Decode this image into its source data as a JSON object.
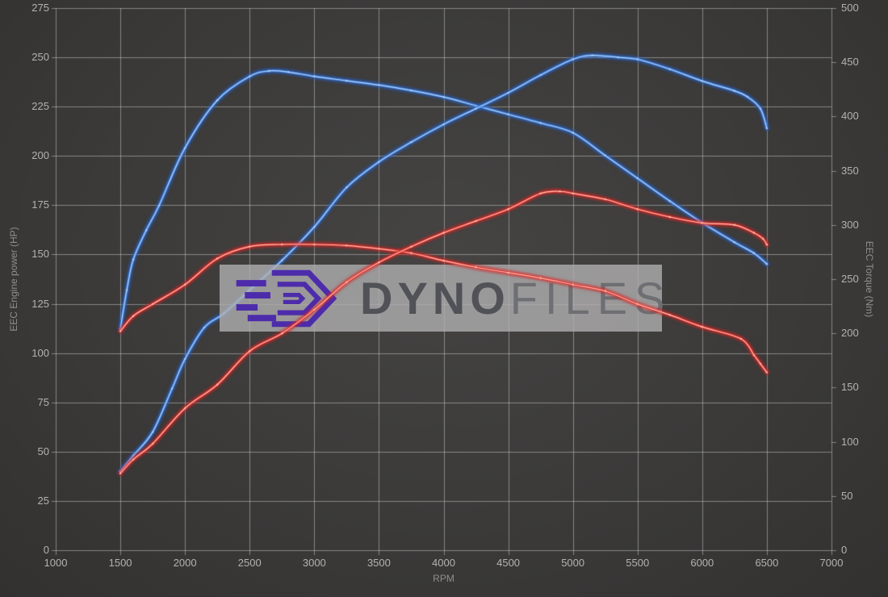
{
  "chart_data": {
    "type": "line",
    "grid": true,
    "legend": "none",
    "x_axis": {
      "label": "RPM",
      "min": 1000,
      "max": 7000,
      "tick_step": 500,
      "ticks": [
        1000,
        1500,
        2000,
        2500,
        3000,
        3500,
        4000,
        4500,
        5000,
        5500,
        6000,
        6500,
        7000
      ]
    },
    "y_axis_left": {
      "label": "EEC Engine power (HP)",
      "min": 0,
      "max": 275,
      "tick_step": 25,
      "ticks": [
        0,
        25,
        50,
        75,
        100,
        125,
        150,
        175,
        200,
        225,
        250,
        275
      ]
    },
    "y_axis_right": {
      "label": "EEC Torque (Nm)",
      "min": 0,
      "max": 500,
      "tick_step": 50,
      "ticks": [
        0,
        50,
        100,
        150,
        200,
        250,
        300,
        350,
        400,
        450,
        500
      ]
    },
    "series": [
      {
        "name": "blue-torque-curve",
        "axis": "right",
        "unit": "Nm",
        "layer": 1,
        "color": {
          "glow": "rgba(34,100,220,0.30)",
          "main": "#3c7bd9",
          "core": "#b3d3f5"
        },
        "points": [
          [
            1500,
            204
          ],
          [
            1550,
            240
          ],
          [
            1600,
            268
          ],
          [
            1700,
            295
          ],
          [
            1800,
            318
          ],
          [
            2000,
            371
          ],
          [
            2250,
            415
          ],
          [
            2500,
            437
          ],
          [
            2650,
            442
          ],
          [
            2800,
            441
          ],
          [
            3000,
            437
          ],
          [
            3250,
            433
          ],
          [
            3500,
            429
          ],
          [
            3750,
            424
          ],
          [
            4000,
            418
          ],
          [
            4250,
            410
          ],
          [
            4500,
            402
          ],
          [
            4750,
            394
          ],
          [
            5000,
            385
          ],
          [
            5250,
            364
          ],
          [
            5500,
            343
          ],
          [
            5750,
            322
          ],
          [
            6000,
            302
          ],
          [
            6250,
            284
          ],
          [
            6400,
            274
          ],
          [
            6500,
            264
          ]
        ]
      },
      {
        "name": "blue-power-curve",
        "axis": "left",
        "unit": "HP",
        "layer": 1,
        "color": {
          "glow": "rgba(34,100,220,0.30)",
          "main": "#3c7bd9",
          "core": "#b3d3f5"
        },
        "points": [
          [
            1500,
            40
          ],
          [
            1600,
            48
          ],
          [
            1750,
            60
          ],
          [
            1900,
            82
          ],
          [
            2000,
            97
          ],
          [
            2150,
            113
          ],
          [
            2300,
            120
          ],
          [
            2500,
            132
          ],
          [
            2750,
            147
          ],
          [
            3000,
            164
          ],
          [
            3250,
            184
          ],
          [
            3500,
            197
          ],
          [
            3750,
            207
          ],
          [
            4000,
            216
          ],
          [
            4250,
            224
          ],
          [
            4500,
            232
          ],
          [
            4750,
            241
          ],
          [
            5000,
            249
          ],
          [
            5150,
            251
          ],
          [
            5350,
            250
          ],
          [
            5500,
            249
          ],
          [
            5750,
            244
          ],
          [
            6000,
            238
          ],
          [
            6250,
            233
          ],
          [
            6350,
            230
          ],
          [
            6450,
            224
          ],
          [
            6500,
            214
          ]
        ]
      },
      {
        "name": "red-torque-curve",
        "axis": "right",
        "unit": "Nm",
        "layer": 2,
        "color": {
          "glow": "rgba(215,35,35,0.32)",
          "main": "#d92f2b",
          "core": "#ffc3b6"
        },
        "points": [
          [
            1500,
            202
          ],
          [
            1600,
            216
          ],
          [
            1750,
            227
          ],
          [
            2000,
            245
          ],
          [
            2250,
            269
          ],
          [
            2500,
            280
          ],
          [
            2750,
            282
          ],
          [
            3000,
            282
          ],
          [
            3250,
            281
          ],
          [
            3500,
            278
          ],
          [
            3750,
            274
          ],
          [
            4000,
            267
          ],
          [
            4250,
            261
          ],
          [
            4500,
            256
          ],
          [
            4750,
            251
          ],
          [
            5000,
            245
          ],
          [
            5250,
            239
          ],
          [
            5500,
            227
          ],
          [
            5750,
            217
          ],
          [
            6000,
            206
          ],
          [
            6300,
            195
          ],
          [
            6400,
            180
          ],
          [
            6450,
            172
          ],
          [
            6500,
            164
          ]
        ]
      },
      {
        "name": "red-power-curve",
        "axis": "left",
        "unit": "HP",
        "layer": 2,
        "color": {
          "glow": "rgba(215,35,35,0.32)",
          "main": "#d92f2b",
          "core": "#ffc3b6"
        },
        "points": [
          [
            1500,
            39
          ],
          [
            1600,
            46
          ],
          [
            1750,
            54
          ],
          [
            2000,
            72
          ],
          [
            2250,
            84
          ],
          [
            2500,
            101
          ],
          [
            2750,
            110
          ],
          [
            3000,
            122
          ],
          [
            3250,
            136
          ],
          [
            3500,
            146
          ],
          [
            3750,
            154
          ],
          [
            4000,
            161
          ],
          [
            4250,
            167
          ],
          [
            4500,
            173
          ],
          [
            4750,
            181
          ],
          [
            4900,
            182
          ],
          [
            5000,
            181
          ],
          [
            5250,
            178
          ],
          [
            5500,
            173
          ],
          [
            5750,
            169
          ],
          [
            6000,
            166
          ],
          [
            6250,
            165
          ],
          [
            6400,
            161
          ],
          [
            6470,
            158
          ],
          [
            6500,
            155
          ]
        ]
      }
    ],
    "watermark": {
      "brand_bold": "Dyno",
      "brand_light": "Files",
      "panel_color": "rgba(176,175,176,0.80)",
      "logo_color": "#4d2cab",
      "text_bold_color": "#515257",
      "text_light_color": "#6e6f73"
    }
  },
  "colors": {
    "background": "#3d3c3b",
    "grid": "rgba(210,210,210,0.50)",
    "tick_text": "#b4b2b0",
    "axis_title_text": "#918f8d"
  }
}
